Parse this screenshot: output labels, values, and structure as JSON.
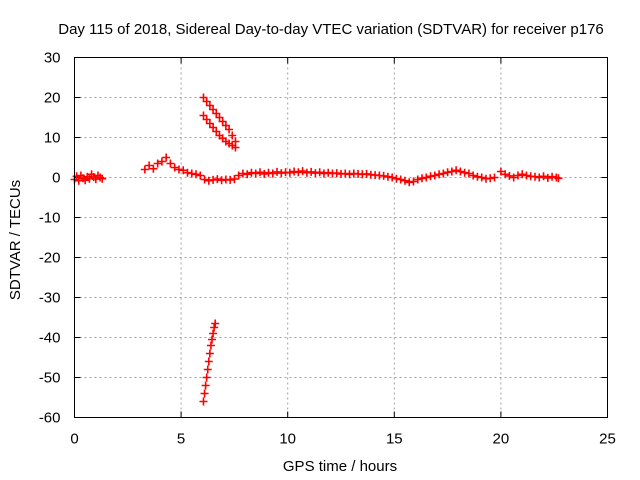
{
  "chart_data": {
    "type": "scatter",
    "title": "Day 115 of 2018, Sidereal Day-to-day VTEC variation (SDTVAR) for receiver p176",
    "xlabel": "GPS time / hours",
    "ylabel": "SDTVAR / TECUs",
    "xlim": [
      0,
      25
    ],
    "ylim": [
      -60,
      30
    ],
    "xticks": [
      0,
      5,
      10,
      15,
      20,
      25
    ],
    "yticks": [
      -60,
      -50,
      -40,
      -30,
      -20,
      -10,
      0,
      10,
      20,
      30
    ],
    "grid": true,
    "marker": "+",
    "series_color": "#ff0000",
    "series": [
      {
        "name": "SDTVAR",
        "points": [
          [
            0.0,
            -0.5
          ],
          [
            0.1,
            0.3
          ],
          [
            0.2,
            -0.8
          ],
          [
            0.3,
            0.5
          ],
          [
            0.4,
            -0.2
          ],
          [
            0.5,
            -0.7
          ],
          [
            0.6,
            0.2
          ],
          [
            0.7,
            -0.3
          ],
          [
            0.8,
            0.8
          ],
          [
            0.9,
            0.1
          ],
          [
            1.0,
            -0.4
          ],
          [
            1.1,
            0.5
          ],
          [
            1.2,
            0.0
          ],
          [
            1.3,
            -0.3
          ],
          [
            3.3,
            2.0
          ],
          [
            3.5,
            3.0
          ],
          [
            3.7,
            2.2
          ],
          [
            3.9,
            3.5
          ],
          [
            4.1,
            4.0
          ],
          [
            4.3,
            5.0
          ],
          [
            4.5,
            3.5
          ],
          [
            4.7,
            2.5
          ],
          [
            4.9,
            2.0
          ],
          [
            5.1,
            1.8
          ],
          [
            5.3,
            1.2
          ],
          [
            5.5,
            1.0
          ],
          [
            5.7,
            0.8
          ],
          [
            5.9,
            0.5
          ],
          [
            6.1,
            -0.5
          ],
          [
            6.3,
            -0.8
          ],
          [
            6.5,
            -0.6
          ],
          [
            6.7,
            -0.4
          ],
          [
            6.9,
            -0.7
          ],
          [
            7.1,
            -0.5
          ],
          [
            7.3,
            -0.6
          ],
          [
            7.5,
            -0.4
          ],
          [
            7.7,
            0.5
          ],
          [
            7.9,
            1.0
          ],
          [
            8.1,
            0.8
          ],
          [
            8.3,
            1.2
          ],
          [
            8.5,
            1.0
          ],
          [
            8.7,
            1.3
          ],
          [
            8.9,
            0.9
          ],
          [
            9.1,
            1.2
          ],
          [
            9.3,
            1.0
          ],
          [
            9.5,
            1.4
          ],
          [
            9.7,
            1.1
          ],
          [
            9.9,
            1.3
          ],
          [
            10.1,
            1.2
          ],
          [
            10.3,
            1.5
          ],
          [
            10.5,
            1.3
          ],
          [
            10.7,
            1.6
          ],
          [
            10.9,
            1.2
          ],
          [
            11.1,
            1.4
          ],
          [
            11.3,
            1.1
          ],
          [
            11.5,
            1.3
          ],
          [
            11.7,
            1.0
          ],
          [
            11.9,
            1.2
          ],
          [
            12.1,
            1.0
          ],
          [
            12.3,
            1.1
          ],
          [
            12.5,
            0.9
          ],
          [
            12.7,
            1.0
          ],
          [
            12.9,
            0.8
          ],
          [
            13.1,
            1.0
          ],
          [
            13.3,
            0.9
          ],
          [
            13.5,
            0.8
          ],
          [
            13.7,
            0.9
          ],
          [
            13.9,
            0.7
          ],
          [
            14.1,
            0.6
          ],
          [
            14.3,
            0.5
          ],
          [
            14.5,
            0.4
          ],
          [
            14.7,
            0.2
          ],
          [
            14.9,
            0.0
          ],
          [
            15.1,
            -0.3
          ],
          [
            15.3,
            -0.5
          ],
          [
            15.5,
            -0.8
          ],
          [
            15.7,
            -1.2
          ],
          [
            15.9,
            -1.0
          ],
          [
            16.1,
            -0.5
          ],
          [
            16.3,
            -0.2
          ],
          [
            16.5,
            0.0
          ],
          [
            16.7,
            0.3
          ],
          [
            16.9,
            0.5
          ],
          [
            17.1,
            0.8
          ],
          [
            17.3,
            1.0
          ],
          [
            17.5,
            1.3
          ],
          [
            17.7,
            1.5
          ],
          [
            17.9,
            1.8
          ],
          [
            18.1,
            1.5
          ],
          [
            18.3,
            1.2
          ],
          [
            18.5,
            1.0
          ],
          [
            18.7,
            0.5
          ],
          [
            18.9,
            0.2
          ],
          [
            19.1,
            0.0
          ],
          [
            19.3,
            -0.3
          ],
          [
            19.5,
            -0.2
          ],
          [
            19.7,
            0.0
          ],
          [
            20.0,
            1.5
          ],
          [
            20.2,
            0.8
          ],
          [
            20.4,
            0.4
          ],
          [
            20.6,
            0.0
          ],
          [
            20.8,
            0.5
          ],
          [
            21.0,
            0.8
          ],
          [
            21.2,
            0.5
          ],
          [
            21.4,
            0.3
          ],
          [
            21.6,
            0.2
          ],
          [
            21.8,
            0.0
          ],
          [
            22.0,
            0.3
          ],
          [
            22.2,
            -0.1
          ],
          [
            22.4,
            0.2
          ],
          [
            22.6,
            0.0
          ],
          [
            22.7,
            -0.2
          ],
          [
            6.05,
            20.0
          ],
          [
            6.2,
            19.0
          ],
          [
            6.35,
            18.0
          ],
          [
            6.5,
            17.0
          ],
          [
            6.65,
            16.0
          ],
          [
            6.8,
            15.0
          ],
          [
            6.95,
            14.0
          ],
          [
            7.1,
            13.0
          ],
          [
            7.25,
            12.0
          ],
          [
            7.4,
            10.5
          ],
          [
            7.55,
            9.0
          ],
          [
            6.05,
            15.5
          ],
          [
            6.2,
            14.5
          ],
          [
            6.35,
            13.5
          ],
          [
            6.5,
            12.5
          ],
          [
            6.65,
            11.5
          ],
          [
            6.8,
            10.5
          ],
          [
            6.95,
            9.8
          ],
          [
            7.1,
            9.0
          ],
          [
            7.25,
            8.5
          ],
          [
            7.4,
            8.0
          ],
          [
            7.55,
            7.5
          ],
          [
            6.05,
            -56.0
          ],
          [
            6.1,
            -54.0
          ],
          [
            6.15,
            -52.0
          ],
          [
            6.2,
            -50.0
          ],
          [
            6.25,
            -48.0
          ],
          [
            6.3,
            -46.0
          ],
          [
            6.35,
            -44.0
          ],
          [
            6.4,
            -42.0
          ],
          [
            6.45,
            -40.5
          ],
          [
            6.5,
            -39.0
          ],
          [
            6.55,
            -37.5
          ],
          [
            6.6,
            -36.5
          ]
        ]
      }
    ]
  }
}
